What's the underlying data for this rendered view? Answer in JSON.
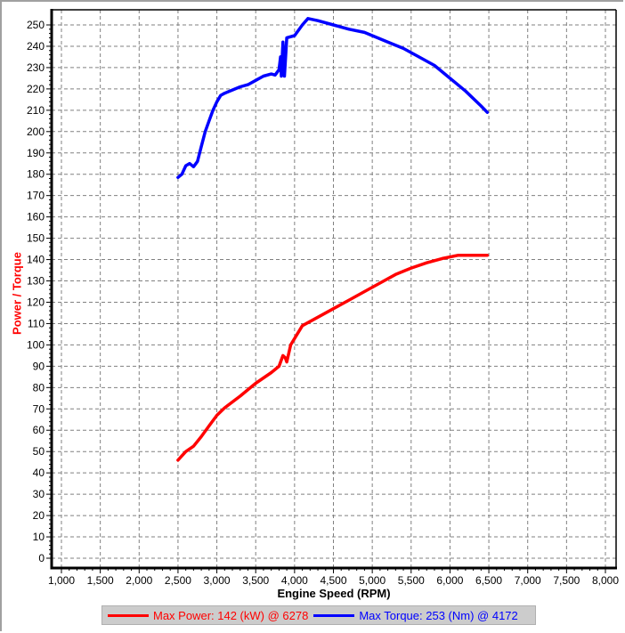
{
  "chart_data": {
    "type": "line",
    "title": "",
    "xlabel": "Engine Speed (RPM)",
    "ylabel": "Power / Torque",
    "xlim": [
      1000,
      8000
    ],
    "ylim": [
      0,
      250
    ],
    "grid": true,
    "legend_position": "bottom",
    "x_ticks": [
      "1,000",
      "1,500",
      "2,000",
      "2,500",
      "3,000",
      "3,500",
      "4,000",
      "4,500",
      "5,000",
      "5,500",
      "6,000",
      "6,500",
      "7,000",
      "7,500",
      "8,000"
    ],
    "y_ticks": [
      "0",
      "10",
      "20",
      "30",
      "40",
      "50",
      "60",
      "70",
      "80",
      "90",
      "100",
      "110",
      "120",
      "130",
      "140",
      "150",
      "160",
      "170",
      "180",
      "190",
      "200",
      "210",
      "220",
      "230",
      "240",
      "250"
    ],
    "series": [
      {
        "name": "Max Power: 142 (kW) @ 6278",
        "color": "#ff0000",
        "unit": "kW",
        "x": [
          2500,
          2600,
          2700,
          2800,
          2900,
          3000,
          3100,
          3300,
          3500,
          3700,
          3800,
          3850,
          3880,
          3900,
          3950,
          4100,
          4300,
          4500,
          4700,
          4900,
          5100,
          5300,
          5500,
          5700,
          5900,
          6100,
          6278,
          6480
        ],
        "values": [
          46,
          50,
          52.5,
          57,
          62,
          67,
          70.5,
          76,
          82,
          87,
          90,
          95,
          94,
          92,
          100,
          109,
          113,
          117,
          121,
          125,
          129,
          133,
          136,
          138.5,
          140.5,
          142,
          142,
          142
        ]
      },
      {
        "name": "Max Torque: 253 (Nm) @ 4172",
        "color": "#0000ff",
        "unit": "Nm",
        "x": [
          2500,
          2550,
          2600,
          2650,
          2700,
          2750,
          2800,
          2850,
          2900,
          2950,
          3000,
          3050,
          3100,
          3200,
          3300,
          3400,
          3500,
          3600,
          3700,
          3750,
          3800,
          3820,
          3830,
          3850,
          3870,
          3900,
          4000,
          4100,
          4172,
          4300,
          4500,
          4700,
          4900,
          5000,
          5200,
          5400,
          5600,
          5800,
          6000,
          6200,
          6400,
          6480
        ],
        "values": [
          178.5,
          180,
          184,
          185,
          183.5,
          186,
          193,
          200,
          205,
          210,
          214,
          217,
          218,
          219.5,
          221,
          222,
          224,
          226,
          227,
          226.5,
          229,
          235,
          226,
          242,
          226,
          244,
          245,
          250,
          253,
          252,
          250,
          248,
          246.5,
          245,
          242,
          239,
          235,
          231,
          225,
          219,
          212,
          209
        ]
      }
    ]
  },
  "legend": {
    "power_label": "Max Power: 142 (kW) @ 6278",
    "torque_label": "Max Torque: 253 (Nm) @ 4172",
    "power_color": "#ff0000",
    "torque_color": "#0000ff"
  },
  "axes": {
    "xlabel": "Engine Speed (RPM)",
    "ylabel": "Power / Torque"
  }
}
